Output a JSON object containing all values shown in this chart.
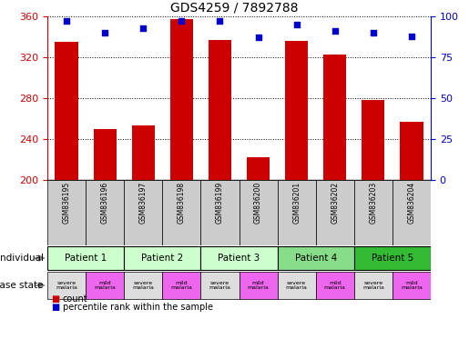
{
  "title": "GDS4259 / 7892788",
  "samples": [
    "GSM836195",
    "GSM836196",
    "GSM836197",
    "GSM836198",
    "GSM836199",
    "GSM836200",
    "GSM836201",
    "GSM836202",
    "GSM836203",
    "GSM836204"
  ],
  "counts": [
    335,
    250,
    253,
    357,
    337,
    222,
    336,
    323,
    278,
    257
  ],
  "percentiles": [
    97,
    90,
    93,
    97,
    97,
    87,
    95,
    91,
    90,
    88
  ],
  "ylim_left": [
    200,
    360
  ],
  "ylim_right": [
    0,
    100
  ],
  "yticks_left": [
    200,
    240,
    280,
    320,
    360
  ],
  "yticks_right": [
    0,
    25,
    50,
    75,
    100
  ],
  "bar_color": "#cc0000",
  "dot_color": "#0000cc",
  "patients": [
    {
      "label": "Patient 1",
      "cols": [
        0,
        1
      ],
      "color": "#ccffcc"
    },
    {
      "label": "Patient 2",
      "cols": [
        2,
        3
      ],
      "color": "#ccffcc"
    },
    {
      "label": "Patient 3",
      "cols": [
        4,
        5
      ],
      "color": "#ccffcc"
    },
    {
      "label": "Patient 4",
      "cols": [
        6,
        7
      ],
      "color": "#88dd88"
    },
    {
      "label": "Patient 5",
      "cols": [
        8,
        9
      ],
      "color": "#33bb33"
    }
  ],
  "disease_states": [
    {
      "label": "severe\nmalaria",
      "color": "#dddddd"
    },
    {
      "label": "mild\nmalaria",
      "color": "#ee66ee"
    },
    {
      "label": "severe\nmalaria",
      "color": "#dddddd"
    },
    {
      "label": "mild\nmalaria",
      "color": "#ee66ee"
    },
    {
      "label": "severe\nmalaria",
      "color": "#dddddd"
    },
    {
      "label": "mild\nmalaria",
      "color": "#ee66ee"
    },
    {
      "label": "severe\nmalaria",
      "color": "#dddddd"
    },
    {
      "label": "mild\nmalaria",
      "color": "#ee66ee"
    },
    {
      "label": "severe\nmalaria",
      "color": "#dddddd"
    },
    {
      "label": "mild\nmalaria",
      "color": "#ee66ee"
    }
  ],
  "sample_bg_color": "#cccccc",
  "individual_label": "individual",
  "disease_label": "disease state",
  "legend_count_label": "count",
  "legend_percentile_label": "percentile rank within the sample",
  "fig_width": 5.15,
  "fig_height": 3.84,
  "dpi": 100
}
